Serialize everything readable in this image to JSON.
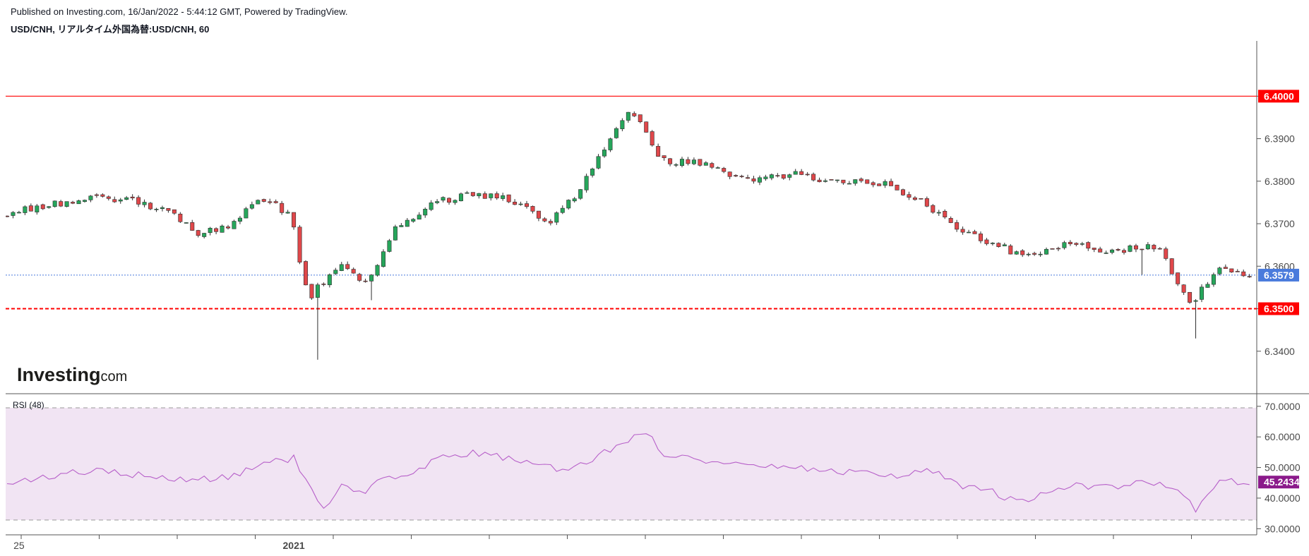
{
  "header": {
    "published": "Published on Investing.com, 16/Jan/2022 - 5:44:12 GMT, Powered by TradingView.",
    "symbol": "USD/CNH, リアルタイム外国為替:USD/CNH, 60"
  },
  "logo": {
    "main": "Investing",
    "suffix": ".com"
  },
  "rsi_title": "RSI (48)",
  "colors": {
    "up": "#26a65b",
    "down": "#e0474a",
    "resistance": "#ff0000",
    "support": "#ff0000",
    "last_price": "#4a7bdc",
    "rsi_line": "#b760c9",
    "rsi_band": "#f1e4f3",
    "rsi_badge": "#8b1a8b"
  },
  "chart_data": [
    {
      "type": "candlestick",
      "price_axis": {
        "range": [
          6.33,
          6.413
        ],
        "ticks": [
          {
            "value": 6.34,
            "label": "6.3400"
          },
          {
            "value": 6.35,
            "label": "6.3500"
          },
          {
            "value": 6.36,
            "label": "6.3600"
          },
          {
            "value": 6.37,
            "label": "6.3700"
          },
          {
            "value": 6.38,
            "label": "6.3800"
          },
          {
            "value": 6.39,
            "label": "6.3900"
          },
          {
            "value": 6.4,
            "label": "6.4000"
          }
        ]
      },
      "x_labels": [
        {
          "label": "25",
          "index": 2,
          "bold": false
        },
        {
          "label": "2021",
          "index": 48,
          "bold": true
        }
      ],
      "horizontal_lines": [
        {
          "value": 6.4,
          "label": "6.4000",
          "style": "solid",
          "color": "#ff0000"
        },
        {
          "value": 6.35,
          "label": "6.3500",
          "style": "dashed",
          "color": "#ff0000"
        }
      ],
      "last_price": {
        "value": 6.3579,
        "label": "6.3579"
      },
      "anchors": [
        [
          0,
          6.372
        ],
        [
          7,
          6.3745
        ],
        [
          16,
          6.376
        ],
        [
          23,
          6.375
        ],
        [
          28,
          6.3728
        ],
        [
          33,
          6.3675
        ],
        [
          38,
          6.37
        ],
        [
          43,
          6.376
        ],
        [
          48,
          6.3725
        ],
        [
          51,
          6.352
        ],
        [
          53,
          6.356
        ],
        [
          57,
          6.36
        ],
        [
          61,
          6.3555
        ],
        [
          65,
          6.368
        ],
        [
          72,
          6.375
        ],
        [
          78,
          6.377
        ],
        [
          87,
          6.375
        ],
        [
          91,
          6.37
        ],
        [
          96,
          6.377
        ],
        [
          101,
          6.388
        ],
        [
          105,
          6.3975
        ],
        [
          110,
          6.385
        ],
        [
          117,
          6.384
        ],
        [
          125,
          6.38
        ],
        [
          133,
          6.3815
        ],
        [
          139,
          6.38
        ],
        [
          148,
          6.379
        ],
        [
          153,
          6.376
        ],
        [
          160,
          6.369
        ],
        [
          166,
          6.365
        ],
        [
          171,
          6.3625
        ],
        [
          178,
          6.365
        ],
        [
          185,
          6.3635
        ],
        [
          193,
          6.365
        ],
        [
          199,
          6.351
        ],
        [
          203,
          6.359
        ],
        [
          208,
          6.3579
        ]
      ],
      "spikes": [
        {
          "index": 52,
          "low": 6.338
        },
        {
          "index": 61,
          "low": 6.352
        },
        {
          "index": 199,
          "low": 6.343
        },
        {
          "index": 190,
          "low": 6.358
        }
      ]
    },
    {
      "type": "line",
      "name": "RSI (48)",
      "y_range": [
        28.0,
        72.5
      ],
      "ticks": [
        {
          "value": 30,
          "label": "30.0000"
        },
        {
          "value": 40,
          "label": "40.0000"
        },
        {
          "value": 50,
          "label": "50.0000"
        },
        {
          "value": 60,
          "label": "60.0000"
        },
        {
          "value": 70,
          "label": "70.0000"
        }
      ],
      "bands": [
        30,
        70
      ],
      "last_value": {
        "value": 45.2434,
        "label": "45.2434"
      },
      "anchors": [
        [
          0,
          44.5
        ],
        [
          8,
          47.5
        ],
        [
          15,
          49.0
        ],
        [
          22,
          47.5
        ],
        [
          28,
          46.5
        ],
        [
          33,
          46.0
        ],
        [
          38,
          47.0
        ],
        [
          43,
          52.0
        ],
        [
          48,
          53.0
        ],
        [
          51,
          42.0
        ],
        [
          53,
          36.5
        ],
        [
          56,
          44.0
        ],
        [
          60,
          42.5
        ],
        [
          64,
          47.0
        ],
        [
          68,
          47.5
        ],
        [
          72,
          53.5
        ],
        [
          78,
          55.0
        ],
        [
          85,
          52.5
        ],
        [
          90,
          50.0
        ],
        [
          94,
          49.0
        ],
        [
          98,
          52.5
        ],
        [
          103,
          58.5
        ],
        [
          107,
          61.5
        ],
        [
          110,
          54.5
        ],
        [
          115,
          53.0
        ],
        [
          120,
          51.0
        ],
        [
          125,
          51.5
        ],
        [
          133,
          49.5
        ],
        [
          139,
          48.5
        ],
        [
          145,
          48.0
        ],
        [
          150,
          47.5
        ],
        [
          155,
          49.0
        ],
        [
          160,
          44.0
        ],
        [
          165,
          42.0
        ],
        [
          169,
          38.5
        ],
        [
          174,
          41.5
        ],
        [
          179,
          44.0
        ],
        [
          185,
          44.0
        ],
        [
          191,
          45.0
        ],
        [
          196,
          42.5
        ],
        [
          199,
          36.5
        ],
        [
          203,
          45.5
        ],
        [
          208,
          45.2434
        ]
      ]
    }
  ]
}
